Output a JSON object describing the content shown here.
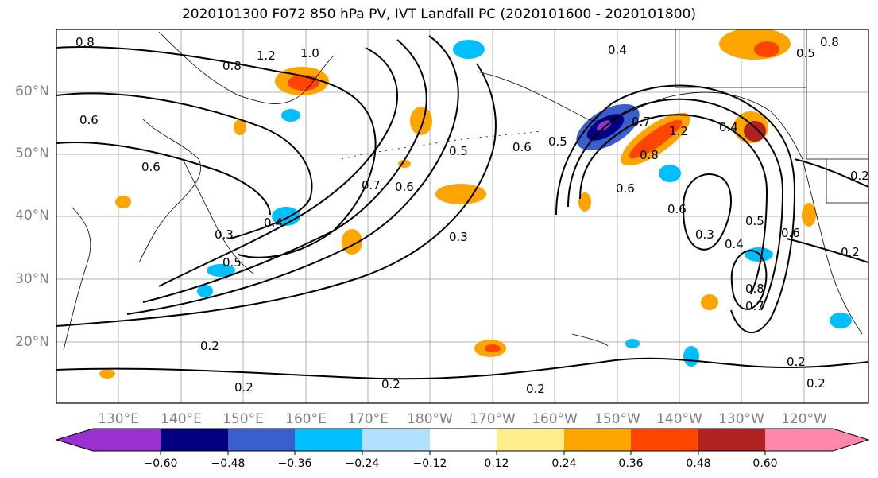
{
  "title": "2020101300 F072 850 hPa PV, IVT Landfall PC (2020101600 - 2020101800)",
  "lat_labels": [
    "60°N",
    "50°N",
    "40°N",
    "30°N",
    "20°N"
  ],
  "lon_labels": [
    "130°E",
    "140°E",
    "150°E",
    "160°E",
    "170°E",
    "180°W",
    "170°W",
    "160°W",
    "150°W",
    "140°W",
    "130°W",
    "120°W"
  ],
  "colorbar": {
    "ticks": [
      "−0.60",
      "−0.48",
      "−0.36",
      "−0.24",
      "−0.12",
      "0.12",
      "0.24",
      "0.36",
      "0.48",
      "0.60"
    ],
    "colors": [
      "#9b30d0",
      "#000080",
      "#3a5fcd",
      "#00bfff",
      "#b0e2ff",
      "#ffffff",
      "#ffec8b",
      "#ffa500",
      "#ff4500",
      "#b22222",
      "#ff88aa"
    ]
  },
  "contour_labels": [
    "0.8",
    "1.2",
    "1.0",
    "0.8",
    "0.6",
    "0.6",
    "0.4",
    "0.7",
    "0.6",
    "0.5",
    "0.4",
    "0.3",
    "0.5",
    "0.3",
    "0.2",
    "0.2",
    "0.2",
    "0.2",
    "0.2",
    "0.2",
    "0.6",
    "0.5",
    "0.7",
    "1.2",
    "0.8",
    "0.6",
    "0.6",
    "0.3",
    "0.4",
    "0.5",
    "0.6",
    "0.8",
    "0.7",
    "0.4",
    "0.8",
    "0.5",
    "0.2",
    "0.2"
  ]
}
